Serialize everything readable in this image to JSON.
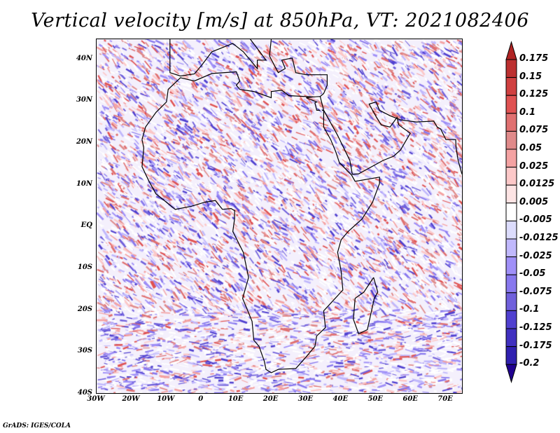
{
  "title": "Vertical velocity [m/s] at 850hPa, VT: 2021082406",
  "credit": "GrADS: IGES/COLA",
  "map": {
    "lon_range": [
      -30,
      75
    ],
    "lat_range": [
      -40,
      45
    ],
    "y_ticks": [
      {
        "lat": 40,
        "label": "40N"
      },
      {
        "lat": 30,
        "label": "30N"
      },
      {
        "lat": 20,
        "label": "20N"
      },
      {
        "lat": 10,
        "label": "10N"
      },
      {
        "lat": 0,
        "label": "EQ"
      },
      {
        "lat": -10,
        "label": "10S"
      },
      {
        "lat": -20,
        "label": "20S"
      },
      {
        "lat": -30,
        "label": "30S"
      },
      {
        "lat": -40,
        "label": "40S"
      }
    ],
    "x_ticks": [
      {
        "lon": -30,
        "label": "30W"
      },
      {
        "lon": -20,
        "label": "20W"
      },
      {
        "lon": -10,
        "label": "10W"
      },
      {
        "lon": 0,
        "label": "0"
      },
      {
        "lon": 10,
        "label": "10E"
      },
      {
        "lon": 20,
        "label": "20E"
      },
      {
        "lon": 30,
        "label": "30E"
      },
      {
        "lon": 40,
        "label": "40E"
      },
      {
        "lon": 50,
        "label": "50E"
      },
      {
        "lon": 60,
        "label": "60E"
      },
      {
        "lon": 70,
        "label": "70E"
      }
    ]
  },
  "colorbar": {
    "labels": [
      "0.175",
      "0.15",
      "0.125",
      "0.1",
      "0.075",
      "0.05",
      "0.025",
      "0.0125",
      "0.005",
      "-0.005",
      "-0.0125",
      "-0.025",
      "-0.05",
      "-0.075",
      "-0.1",
      "-0.125",
      "-0.175",
      "-0.2"
    ],
    "colors": [
      "#b02424",
      "#bc3030",
      "#d04040",
      "#e05252",
      "#e07070",
      "#e08a8a",
      "#f4a2a2",
      "#fcc8c8",
      "#fde4e4",
      "#ffffff",
      "#dcdcfc",
      "#c0b8fc",
      "#a090f8",
      "#8878ee",
      "#7060dc",
      "#5040d0",
      "#4030c0",
      "#3020b0",
      "#200090"
    ]
  }
}
